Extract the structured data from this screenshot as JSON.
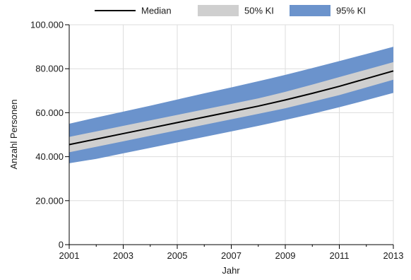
{
  "chart_data": {
    "type": "area",
    "xlabel": "Jahr",
    "ylabel": "Anzahl Personen",
    "xlim": [
      2001,
      2013
    ],
    "ylim": [
      0,
      100000
    ],
    "x_ticks": [
      {
        "value": 2001,
        "label": "2001"
      },
      {
        "value": 2003,
        "label": "2003"
      },
      {
        "value": 2005,
        "label": "2005"
      },
      {
        "value": 2007,
        "label": "2007"
      },
      {
        "value": 2009,
        "label": "2009"
      },
      {
        "value": 2011,
        "label": "2011"
      },
      {
        "value": 2013,
        "label": "2013"
      }
    ],
    "x_minor_ticks": [
      2002,
      2004,
      2006,
      2008,
      2010,
      2012
    ],
    "y_ticks": [
      {
        "value": 0,
        "label": "0"
      },
      {
        "value": 20000,
        "label": "20.000"
      },
      {
        "value": 40000,
        "label": "40.000"
      },
      {
        "value": 60000,
        "label": "60.000"
      },
      {
        "value": 80000,
        "label": "80.000"
      },
      {
        "value": 100000,
        "label": "100.000"
      }
    ],
    "grid": true,
    "legend_position": "top",
    "x": [
      2001,
      2002,
      2003,
      2004,
      2005,
      2006,
      2007,
      2008,
      2009,
      2010,
      2011,
      2012,
      2013
    ],
    "series": [
      {
        "name": "Median",
        "kind": "line",
        "color": "#000000",
        "values": [
          45500,
          48000,
          50500,
          53000,
          55500,
          58000,
          60500,
          63000,
          65800,
          68800,
          72000,
          75500,
          79000
        ]
      },
      {
        "name": "50% KI",
        "kind": "band",
        "color": "#cfcfcf",
        "lower": [
          42000,
          44500,
          47000,
          49500,
          52000,
          54500,
          57000,
          59500,
          62000,
          65000,
          68000,
          71500,
          75000
        ],
        "upper": [
          49000,
          51500,
          54000,
          56500,
          59000,
          61500,
          64000,
          66500,
          69500,
          72800,
          76200,
          79600,
          83000
        ]
      },
      {
        "name": "95% KI",
        "kind": "band",
        "color": "#6b93cc",
        "lower": [
          37000,
          39000,
          41500,
          44000,
          46500,
          49000,
          51500,
          54000,
          56700,
          59500,
          62500,
          65700,
          69000
        ],
        "upper": [
          55000,
          57800,
          60500,
          63200,
          66000,
          68800,
          71500,
          74300,
          77200,
          80300,
          83500,
          86700,
          90000
        ]
      }
    ]
  }
}
